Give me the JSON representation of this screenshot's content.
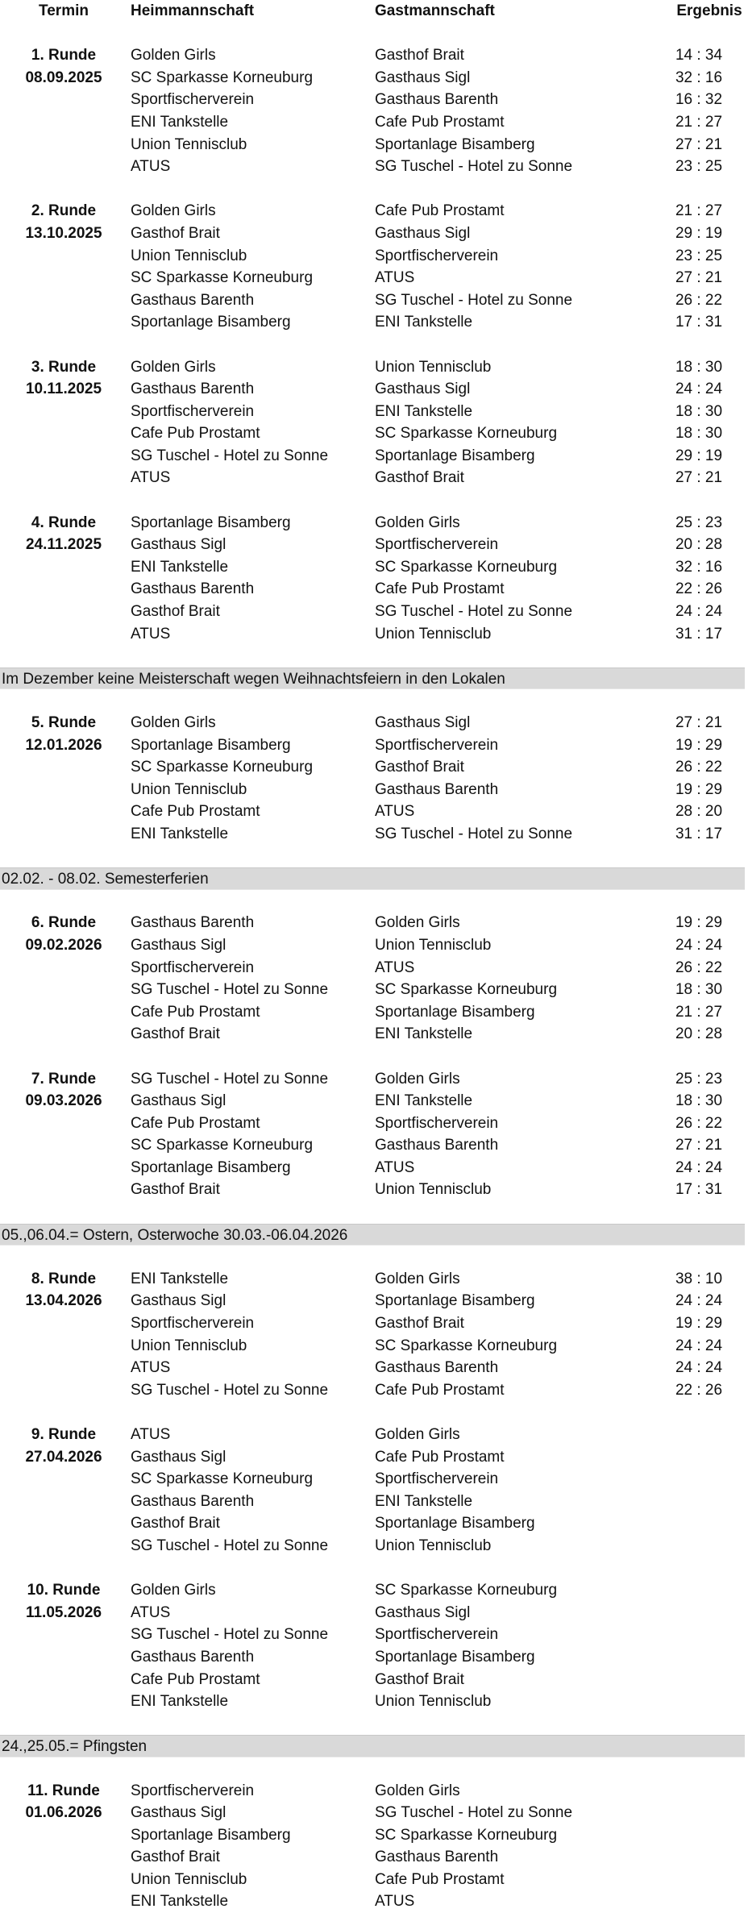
{
  "header": {
    "termin": "Termin",
    "home": "Heimmannschaft",
    "guest": "Gastmannschaft",
    "result": "Ergebnis"
  },
  "schedule": [
    {
      "type": "round",
      "round": "1. Runde",
      "date": "08.09.2025",
      "matches": [
        [
          "Golden Girls",
          "Gasthof Brait",
          "14 : 34"
        ],
        [
          "SC Sparkasse Korneuburg",
          "Gasthaus Sigl",
          "32 : 16"
        ],
        [
          "Sportfischerverein",
          "Gasthaus Barenth",
          "16 :  32"
        ],
        [
          "ENI Tankstelle",
          "Cafe Pub Prostamt",
          "21 : 27"
        ],
        [
          "Union Tennisclub",
          "Sportanlage Bisamberg",
          "27 : 21"
        ],
        [
          "ATUS",
          "SG Tuschel - Hotel zu Sonne",
          "23 : 25"
        ]
      ]
    },
    {
      "type": "round",
      "round": "2. Runde",
      "date": "13.10.2025",
      "matches": [
        [
          "Golden Girls",
          "Cafe Pub Prostamt",
          "21 : 27"
        ],
        [
          "Gasthof Brait",
          "Gasthaus Sigl",
          "29 : 19"
        ],
        [
          "Union Tennisclub",
          "Sportfischerverein",
          "23 : 25"
        ],
        [
          "SC Sparkasse Korneuburg",
          "ATUS",
          "27 : 21"
        ],
        [
          "Gasthaus Barenth",
          "SG Tuschel - Hotel zu Sonne",
          "26 : 22"
        ],
        [
          "Sportanlage Bisamberg",
          "ENI Tankstelle",
          "17 : 31"
        ]
      ]
    },
    {
      "type": "round",
      "round": "3. Runde",
      "date": "10.11.2025",
      "matches": [
        [
          "Golden Girls",
          "Union Tennisclub",
          "18 : 30"
        ],
        [
          "Gasthaus Barenth",
          "Gasthaus Sigl",
          "24 : 24"
        ],
        [
          "Sportfischerverein",
          "ENI Tankstelle",
          "18 : 30"
        ],
        [
          "Cafe Pub Prostamt",
          "SC Sparkasse Korneuburg",
          "18 : 30"
        ],
        [
          "SG Tuschel - Hotel zu Sonne",
          "Sportanlage Bisamberg",
          "29 : 19"
        ],
        [
          "ATUS",
          "Gasthof Brait",
          "27 : 21"
        ]
      ]
    },
    {
      "type": "round",
      "round": "4. Runde",
      "date": "24.11.2025",
      "matches": [
        [
          "Sportanlage Bisamberg",
          "Golden Girls",
          "25 : 23"
        ],
        [
          "Gasthaus Sigl",
          "Sportfischerverein",
          "20 : 28"
        ],
        [
          "ENI Tankstelle",
          "SC Sparkasse Korneuburg",
          "32 : 16"
        ],
        [
          "Gasthaus Barenth",
          "Cafe Pub Prostamt",
          "22 : 26"
        ],
        [
          "Gasthof Brait",
          "SG Tuschel - Hotel zu Sonne",
          "24 : 24"
        ],
        [
          "ATUS",
          "Union Tennisclub",
          "31 : 17"
        ]
      ]
    },
    {
      "type": "note",
      "text": "Im Dezember keine Meisterschaft wegen Weihnachtsfeiern in den Lokalen"
    },
    {
      "type": "round",
      "round": "5. Runde",
      "date": "12.01.2026",
      "matches": [
        [
          "Golden Girls",
          "Gasthaus Sigl",
          "27 : 21"
        ],
        [
          "Sportanlage Bisamberg",
          "Sportfischerverein",
          "19 : 29"
        ],
        [
          "SC Sparkasse Korneuburg",
          "Gasthof Brait",
          "26 : 22"
        ],
        [
          "Union Tennisclub",
          "Gasthaus Barenth",
          "19 : 29"
        ],
        [
          "Cafe Pub Prostamt",
          "ATUS",
          "28 : 20"
        ],
        [
          "ENI Tankstelle",
          "SG Tuschel - Hotel zu Sonne",
          "31 : 17"
        ]
      ]
    },
    {
      "type": "note",
      "text": "02.02. - 08.02. Semesterferien"
    },
    {
      "type": "round",
      "round": "6. Runde",
      "date": "09.02.2026",
      "matches": [
        [
          "Gasthaus Barenth",
          "Golden Girls",
          "19 : 29"
        ],
        [
          "Gasthaus Sigl",
          "Union Tennisclub",
          "24 : 24"
        ],
        [
          "Sportfischerverein",
          "ATUS",
          "26 : 22"
        ],
        [
          "SG Tuschel - Hotel zu Sonne",
          "SC Sparkasse Korneuburg",
          "18 : 30"
        ],
        [
          "Cafe Pub Prostamt",
          "Sportanlage Bisamberg",
          "21 : 27"
        ],
        [
          "Gasthof Brait",
          "ENI Tankstelle",
          "20 : 28"
        ]
      ]
    },
    {
      "type": "round",
      "round": "7. Runde",
      "date": "09.03.2026",
      "matches": [
        [
          "SG Tuschel - Hotel zu Sonne",
          "Golden Girls",
          "25 : 23"
        ],
        [
          "Gasthaus Sigl",
          "ENI Tankstelle",
          "18 : 30"
        ],
        [
          "Cafe Pub Prostamt",
          "Sportfischerverein",
          "26 : 22"
        ],
        [
          "SC Sparkasse Korneuburg",
          "Gasthaus Barenth",
          "27 : 21"
        ],
        [
          "Sportanlage Bisamberg",
          "ATUS",
          "24 : 24"
        ],
        [
          "Gasthof Brait",
          "Union Tennisclub",
          "17 : 31"
        ]
      ]
    },
    {
      "type": "note",
      "text": "05.,06.04.= Ostern, Osterwoche 30.03.-06.04.2026"
    },
    {
      "type": "round",
      "round": "8. Runde",
      "date": "13.04.2026",
      "matches": [
        [
          "ENI Tankstelle",
          "Golden Girls",
          "38 : 10"
        ],
        [
          "Gasthaus Sigl",
          "Sportanlage Bisamberg",
          "24 : 24"
        ],
        [
          "Sportfischerverein",
          "Gasthof Brait",
          "19 : 29"
        ],
        [
          "Union Tennisclub",
          "SC Sparkasse Korneuburg",
          "24 : 24"
        ],
        [
          "ATUS",
          "Gasthaus Barenth",
          "24 : 24"
        ],
        [
          "SG Tuschel - Hotel zu Sonne",
          "Cafe Pub Prostamt",
          "22 : 26"
        ]
      ]
    },
    {
      "type": "round",
      "round": "9. Runde",
      "date": "27.04.2026",
      "matches": [
        [
          "ATUS",
          "Golden Girls",
          ""
        ],
        [
          "Gasthaus Sigl",
          "Cafe Pub Prostamt",
          ""
        ],
        [
          "SC Sparkasse Korneuburg",
          "Sportfischerverein",
          ""
        ],
        [
          "Gasthaus Barenth",
          "ENI Tankstelle",
          ""
        ],
        [
          "Gasthof Brait",
          "Sportanlage Bisamberg",
          ""
        ],
        [
          "SG Tuschel - Hotel zu Sonne",
          "Union Tennisclub",
          ""
        ]
      ]
    },
    {
      "type": "round",
      "round": "10. Runde",
      "date": "11.05.2026",
      "matches": [
        [
          "Golden Girls",
          "SC Sparkasse Korneuburg",
          ""
        ],
        [
          "ATUS",
          "Gasthaus Sigl",
          ""
        ],
        [
          "SG Tuschel - Hotel zu Sonne",
          "Sportfischerverein",
          ""
        ],
        [
          "Gasthaus Barenth",
          "Sportanlage Bisamberg",
          ""
        ],
        [
          "Cafe Pub Prostamt",
          "Gasthof Brait",
          ""
        ],
        [
          "ENI Tankstelle",
          "Union Tennisclub",
          ""
        ]
      ]
    },
    {
      "type": "note",
      "text": "24.,25.05.= Pfingsten"
    },
    {
      "type": "round",
      "round": "11. Runde",
      "date": "01.06.2026",
      "matches": [
        [
          "Sportfischerverein",
          "Golden Girls",
          ""
        ],
        [
          "Gasthaus Sigl",
          "SG Tuschel - Hotel zu Sonne",
          ""
        ],
        [
          "Sportanlage Bisamberg",
          "SC Sparkasse Korneuburg",
          ""
        ],
        [
          "Gasthof Brait",
          "Gasthaus Barenth",
          ""
        ],
        [
          "Union Tennisclub",
          "Cafe Pub Prostamt",
          ""
        ],
        [
          "ENI Tankstelle",
          "ATUS",
          ""
        ]
      ]
    }
  ]
}
